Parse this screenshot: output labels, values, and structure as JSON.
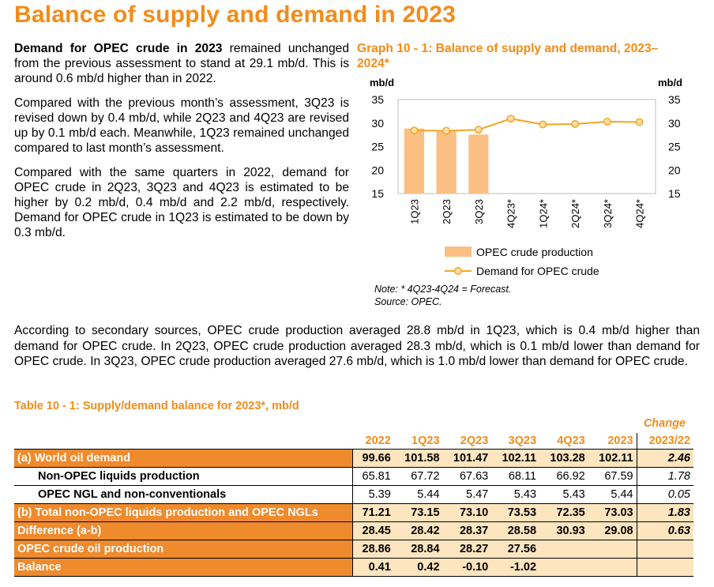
{
  "page_title": "Balance of supply and demand in 2023",
  "paragraphs_left": [
    {
      "bold": "Demand for OPEC crude in 2023",
      "text": " remained unchanged from the previous assessment to stand at 29.1 mb/d. This is around 0.6 mb/d higher than in 2022."
    },
    {
      "bold": "",
      "text": "Compared with the previous month’s assessment, 3Q23 is revised down by 0.4 mb/d, while 2Q23 and 4Q23 are revised up by 0.1 mb/d each. Meanwhile, 1Q23 remained unchanged compared to last month’s assessment."
    },
    {
      "bold": "",
      "text": "Compared with the same quarters in 2022, demand for OPEC crude in 2Q23, 3Q23 and 4Q23 is estimated to be higher by 0.2 mb/d, 0.4 mb/d and 2.2 mb/d, respectively. Demand for OPEC crude in 1Q23 is estimated to be down by 0.3 mb/d."
    }
  ],
  "graph_title": "Graph 10 - 1: Balance of supply and demand, 2023–2024*",
  "chart_data": {
    "type": "bar",
    "categories": [
      "1Q23",
      "2Q23",
      "3Q23",
      "4Q23*",
      "1Q24*",
      "2Q24*",
      "3Q24*",
      "4Q24*"
    ],
    "series": [
      {
        "name": "OPEC crude production",
        "type": "bar",
        "values": [
          28.84,
          28.27,
          27.56,
          null,
          null,
          null,
          null,
          null
        ],
        "color": "#fbbf83"
      },
      {
        "name": "Demand for OPEC crude",
        "type": "line",
        "values": [
          28.42,
          28.37,
          28.58,
          30.93,
          29.7,
          29.8,
          30.3,
          30.2
        ],
        "color": "#f5a623"
      }
    ],
    "ylabel_left": "mb/d",
    "ylabel_right": "mb/d",
    "ylim": [
      15,
      35
    ],
    "yticks": [
      15,
      20,
      25,
      30,
      35
    ],
    "legend_position": "bottom"
  },
  "note": "Note: * 4Q23-4Q24 = Forecast.",
  "source": "Source: OPEC.",
  "paragraph_full": "According to secondary sources, OPEC crude production averaged 28.8 mb/d in 1Q23, which is 0.4 mb/d higher than demand for OPEC crude. In 2Q23, OPEC crude production averaged 28.3 mb/d, which is 0.1 mb/d lower than demand for OPEC crude. In 3Q23, OPEC crude production averaged 27.6 mb/d, which is 1.0 mb/d lower than demand for OPEC crude.",
  "table_title": "Table 10 - 1: Supply/demand balance for 2023*, mb/d",
  "table": {
    "change_label": "Change",
    "headers": [
      "2022",
      "1Q23",
      "2Q23",
      "3Q23",
      "4Q23",
      "2023",
      "2023/22"
    ],
    "rows": [
      {
        "label": "(a) World oil demand",
        "values": [
          "99.66",
          "101.58",
          "101.47",
          "102.11",
          "103.28",
          "102.11"
        ],
        "change": "2.46",
        "style": "orange"
      },
      {
        "label": "Non-OPEC liquids production",
        "values": [
          "65.81",
          "67.72",
          "67.63",
          "68.11",
          "66.92",
          "67.59"
        ],
        "change": "1.78",
        "style": "white"
      },
      {
        "label": "OPEC NGL and non-conventionals",
        "values": [
          "5.39",
          "5.44",
          "5.47",
          "5.43",
          "5.43",
          "5.44"
        ],
        "change": "0.05",
        "style": "white"
      },
      {
        "label": "(b) Total non-OPEC liquids production and OPEC NGLs",
        "values": [
          "71.21",
          "73.15",
          "73.10",
          "73.53",
          "72.35",
          "73.03"
        ],
        "change": "1.83",
        "style": "orange"
      },
      {
        "label": "Difference (a-b)",
        "values": [
          "28.45",
          "28.42",
          "28.37",
          "28.58",
          "30.93",
          "29.08"
        ],
        "change": "0.63",
        "style": "orange"
      },
      {
        "label": "OPEC crude oil production",
        "values": [
          "28.86",
          "28.84",
          "28.27",
          "27.56",
          "",
          ""
        ],
        "change": "",
        "style": "orange"
      },
      {
        "label": "Balance",
        "values": [
          "0.41",
          "0.42",
          "-0.10",
          "-1.02",
          "",
          ""
        ],
        "change": "",
        "style": "orange"
      }
    ]
  }
}
